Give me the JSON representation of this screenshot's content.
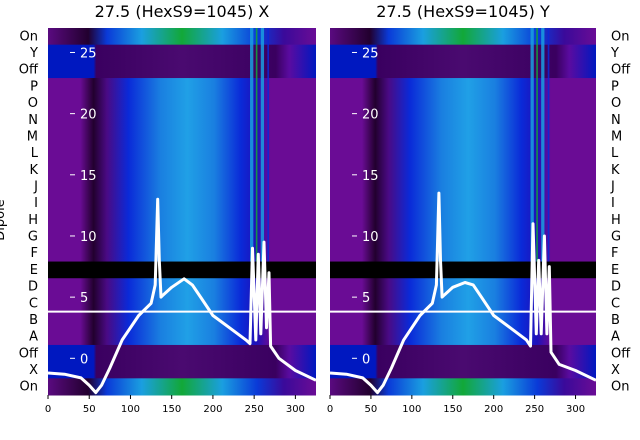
{
  "chart_data": {
    "type": "heatmap",
    "ylabel": "Dipole",
    "row_labels": [
      "On",
      "Y",
      "Off",
      "P",
      "O",
      "N",
      "M",
      "L",
      "K",
      "J",
      "I",
      "H",
      "G",
      "F",
      "E",
      "D",
      "C",
      "B",
      "A",
      "Off",
      "X",
      "On"
    ],
    "x_ticks": [
      0,
      50,
      100,
      150,
      200,
      250,
      300
    ],
    "xlim": [
      0,
      325
    ],
    "overlay_ylim": [
      -3,
      27
    ],
    "overlay_ticks": [
      0,
      5,
      10,
      15,
      20,
      25
    ],
    "panels": [
      {
        "title": "27.5 (HexS9=1045) X",
        "overlay_series": {
          "x": [
            0,
            20,
            40,
            50,
            58,
            65,
            75,
            90,
            110,
            125,
            130,
            133,
            135,
            137,
            140,
            150,
            165,
            175,
            185,
            200,
            220,
            240,
            245,
            248,
            252,
            255,
            258,
            262,
            265,
            268,
            270,
            280,
            300,
            325
          ],
          "y": [
            -1.2,
            -1.3,
            -1.6,
            -2.2,
            -2.8,
            -2.2,
            -0.8,
            1.5,
            3.5,
            4.5,
            6.0,
            13.0,
            8.0,
            5.0,
            5.2,
            5.8,
            6.5,
            6.0,
            5.0,
            3.5,
            2.5,
            1.5,
            1.2,
            9.0,
            1.5,
            8.5,
            2.0,
            9.5,
            2.5,
            7.0,
            1.0,
            0.0,
            -1.0,
            -1.8
          ]
        }
      },
      {
        "title": "27.5 (HexS9=1045) Y",
        "overlay_series": {
          "x": [
            0,
            20,
            40,
            50,
            58,
            65,
            75,
            90,
            110,
            125,
            130,
            133,
            135,
            137,
            140,
            150,
            165,
            175,
            185,
            200,
            220,
            240,
            245,
            248,
            252,
            255,
            258,
            262,
            265,
            268,
            270,
            280,
            300,
            325
          ],
          "y": [
            -1.2,
            -1.3,
            -1.6,
            -2.2,
            -2.8,
            -2.2,
            -0.8,
            1.5,
            3.5,
            4.5,
            6.0,
            13.5,
            8.0,
            5.0,
            5.2,
            5.8,
            6.2,
            6.0,
            5.0,
            3.5,
            2.5,
            1.5,
            1.0,
            11.0,
            2.0,
            8.0,
            2.0,
            10.0,
            2.0,
            7.5,
            0.5,
            -0.5,
            -1.0,
            -1.8
          ]
        }
      }
    ],
    "colors": {
      "purple": "#7a0fa0",
      "dark": "#1a0028",
      "blue": "#0a28d8",
      "cyan": "#1a9fe0",
      "green": "#12a838",
      "overlay": "#ffffff"
    }
  }
}
